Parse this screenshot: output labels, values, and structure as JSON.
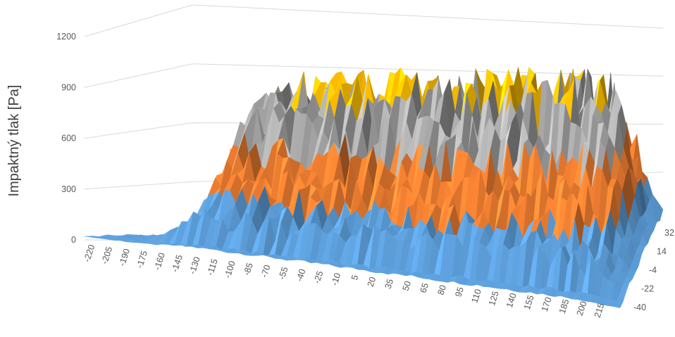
{
  "chart_data": {
    "type": "surface",
    "ylabel": "Impaktný tlak [Pa]",
    "zlim": [
      0,
      1200
    ],
    "z_ticks": [
      "0",
      "300",
      "600",
      "900",
      "1200"
    ],
    "x_ticks": [
      "-220",
      "-205",
      "-190",
      "-175",
      "-160",
      "-145",
      "-130",
      "-115",
      "-100",
      "-85",
      "-70",
      "-55",
      "-40",
      "-25",
      "-10",
      "5",
      "20",
      "35",
      "50",
      "65",
      "80",
      "95",
      "110",
      "125",
      "140",
      "155",
      "170",
      "185",
      "200",
      "215"
    ],
    "depth_ticks": [
      "-40",
      "-22",
      "-4",
      "14",
      "32"
    ],
    "bands": [
      {
        "range": "0-300",
        "color": "#5b9bd5"
      },
      {
        "range": "300-600",
        "color": "#ed7d31"
      },
      {
        "range": "600-900",
        "color": "#a5a5a5"
      },
      {
        "range": "900-1200",
        "color": "#ffc000"
      }
    ],
    "approx_plateau_pa": 900,
    "approx_peak_pa": 1150,
    "plateau_x_range": [
      -155,
      200
    ],
    "grid": true
  }
}
